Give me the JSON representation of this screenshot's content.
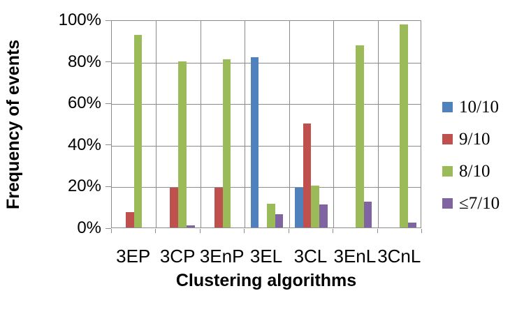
{
  "chart_data": {
    "type": "bar",
    "title": "",
    "xlabel": "Clustering algorithms",
    "ylabel": "Frequency of events",
    "categories": [
      "3EP",
      "3CP",
      "3EnP",
      "3EL",
      "3CL",
      "3EnL",
      "3CnL"
    ],
    "series": [
      {
        "name": "10/10",
        "color": "#4F81BD",
        "values": [
          0,
          0,
          0,
          82,
          19,
          0,
          0
        ]
      },
      {
        "name": "9/10",
        "color": "#C0504D",
        "values": [
          7.5,
          19,
          19,
          0,
          50,
          0,
          0
        ]
      },
      {
        "name": "8/10",
        "color": "#9BBB59",
        "values": [
          92.5,
          80,
          81,
          11.5,
          20,
          87.5,
          97.5
        ]
      },
      {
        "name": "≤7/10",
        "color": "#8064A2",
        "values": [
          0,
          1,
          0,
          6.5,
          11,
          12.5,
          2.5
        ]
      }
    ],
    "ylim": [
      0,
      100
    ],
    "yticks": [
      "0%",
      "20%",
      "40%",
      "60%",
      "80%",
      "100%"
    ],
    "grid": true,
    "legend_position": "right",
    "gridline_color": "#8c8c8c"
  }
}
